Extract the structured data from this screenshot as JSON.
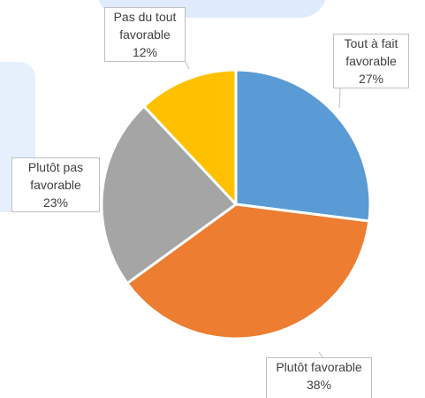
{
  "chart_data": {
    "type": "pie",
    "title": "",
    "slices": [
      {
        "label": "Tout à fait favorable",
        "value": 27,
        "display": "27%",
        "color": "#5b9bd5"
      },
      {
        "label": "Plutôt favorable",
        "value": 38,
        "display": "38%",
        "color": "#ed7d31"
      },
      {
        "label": "Plutôt pas favorable",
        "value": 23,
        "display": "23%",
        "color": "#a5a5a5"
      },
      {
        "label": "Pas du tout favorable",
        "value": 12,
        "display": "12%",
        "color": "#ffc000"
      }
    ],
    "legend": "none",
    "data_labels": "callout"
  }
}
